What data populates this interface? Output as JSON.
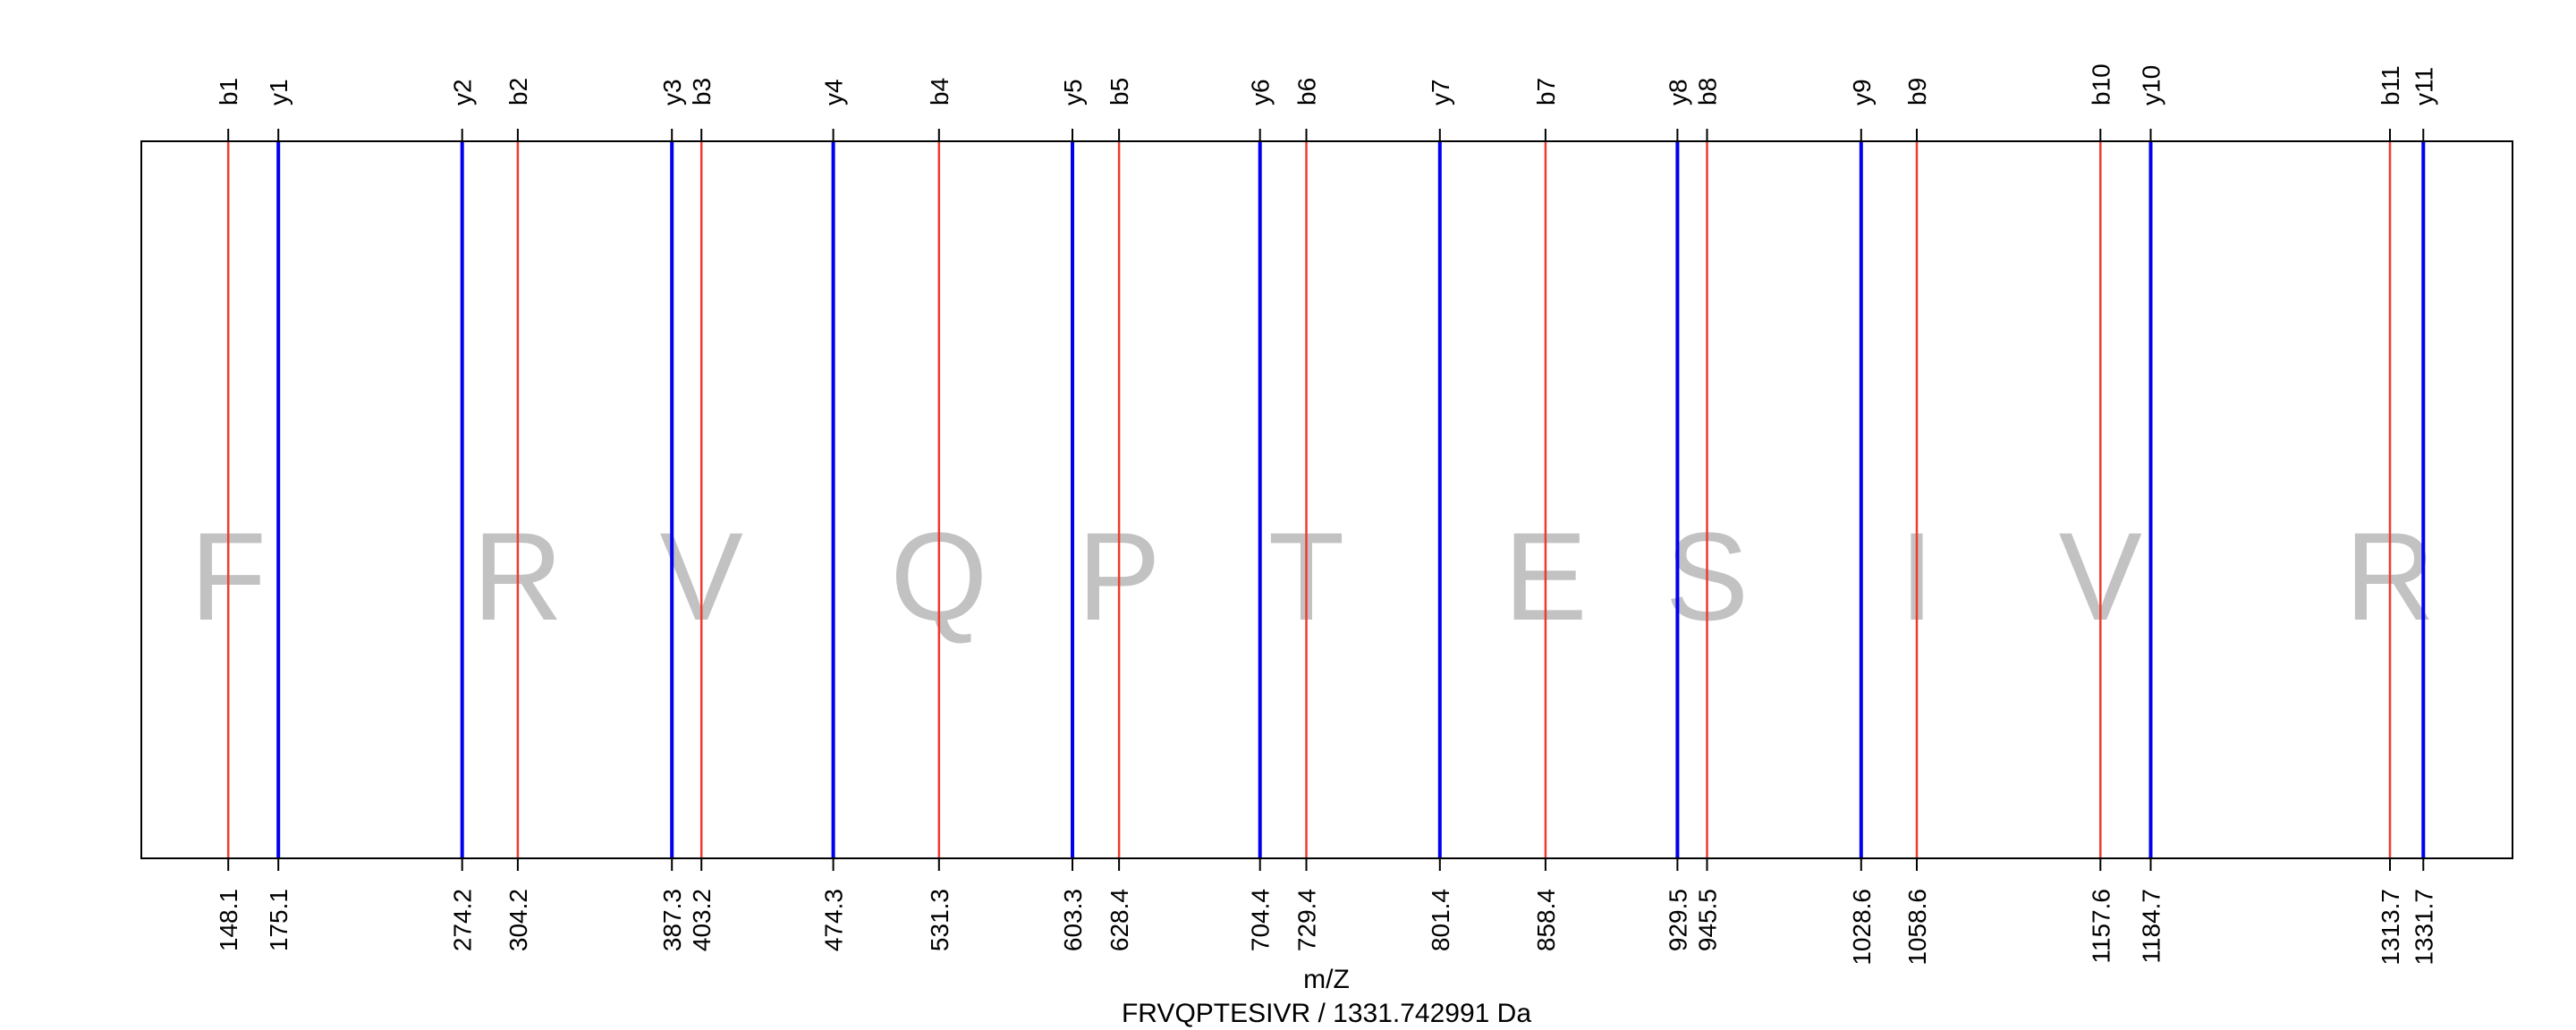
{
  "chart_data": {
    "type": "spectrum",
    "title": "FRVQPTESIVR / 1331.742991 Da",
    "xlabel": "m/Z",
    "ylabel": "",
    "xlim": [
      101.2,
      1379.8
    ],
    "grid": false,
    "legend": "none",
    "colors": {
      "b": "#ee3b2c",
      "y": "#0000ee",
      "frame": "#000000",
      "residue": "#c2c2c2"
    },
    "residues": [
      {
        "letter": "F",
        "x": 148.1
      },
      {
        "letter": "R",
        "x": 304.2
      },
      {
        "letter": "V",
        "x": 403.2
      },
      {
        "letter": "Q",
        "x": 531.3
      },
      {
        "letter": "P",
        "x": 628.4
      },
      {
        "letter": "T",
        "x": 729.4
      },
      {
        "letter": "E",
        "x": 858.4
      },
      {
        "letter": "S",
        "x": 945.5
      },
      {
        "letter": "I",
        "x": 1058.6
      },
      {
        "letter": "V",
        "x": 1157.6
      },
      {
        "letter": "R",
        "x": 1313.7
      }
    ],
    "ions": [
      {
        "name": "b1",
        "series": "b",
        "mz": 148.1,
        "label": "148.1"
      },
      {
        "name": "y1",
        "series": "y",
        "mz": 175.1,
        "label": "175.1"
      },
      {
        "name": "y2",
        "series": "y",
        "mz": 274.2,
        "label": "274.2"
      },
      {
        "name": "b2",
        "series": "b",
        "mz": 304.2,
        "label": "304.2"
      },
      {
        "name": "y3",
        "series": "y",
        "mz": 387.3,
        "label": "387.3"
      },
      {
        "name": "b3",
        "series": "b",
        "mz": 403.2,
        "label": "403.2"
      },
      {
        "name": "y4",
        "series": "y",
        "mz": 474.3,
        "label": "474.3"
      },
      {
        "name": "b4",
        "series": "b",
        "mz": 531.3,
        "label": "531.3"
      },
      {
        "name": "y5",
        "series": "y",
        "mz": 603.3,
        "label": "603.3"
      },
      {
        "name": "b5",
        "series": "b",
        "mz": 628.4,
        "label": "628.4"
      },
      {
        "name": "y6",
        "series": "y",
        "mz": 704.4,
        "label": "704.4"
      },
      {
        "name": "b6",
        "series": "b",
        "mz": 729.4,
        "label": "729.4"
      },
      {
        "name": "y7",
        "series": "y",
        "mz": 801.4,
        "label": "801.4"
      },
      {
        "name": "b7",
        "series": "b",
        "mz": 858.4,
        "label": "858.4"
      },
      {
        "name": "y8",
        "series": "y",
        "mz": 929.5,
        "label": "929.5"
      },
      {
        "name": "b8",
        "series": "b",
        "mz": 945.5,
        "label": "945.5"
      },
      {
        "name": "y9",
        "series": "y",
        "mz": 1028.6,
        "label": "1028.6"
      },
      {
        "name": "b9",
        "series": "b",
        "mz": 1058.6,
        "label": "1058.6"
      },
      {
        "name": "b10",
        "series": "b",
        "mz": 1157.6,
        "label": "1157.6"
      },
      {
        "name": "y10",
        "series": "y",
        "mz": 1184.7,
        "label": "1184.7"
      },
      {
        "name": "b11",
        "series": "b",
        "mz": 1313.7,
        "label": "1313.7"
      },
      {
        "name": "y11",
        "series": "y",
        "mz": 1331.7,
        "label": "1331.7"
      }
    ]
  }
}
